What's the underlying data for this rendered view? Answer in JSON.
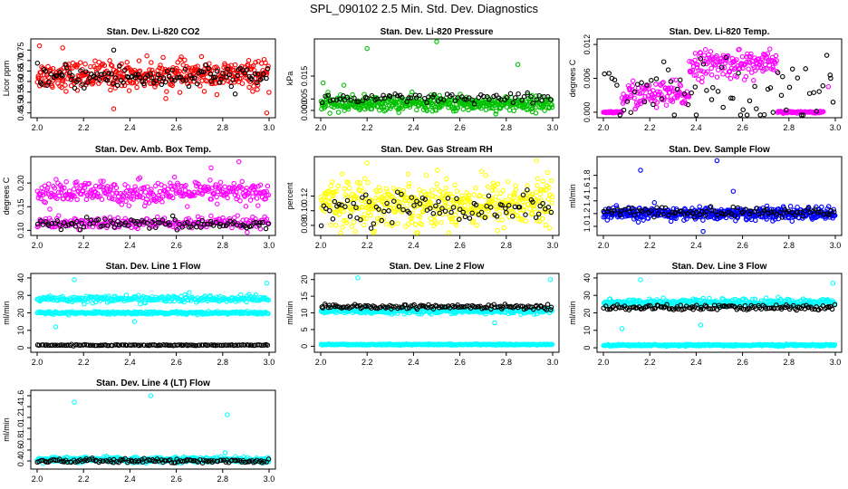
{
  "title": "SPL_090102  2.5 Min. Std. Dev. Diagnostics",
  "chart_data": [
    {
      "type": "scatter",
      "title": "Stan. Dev. Li-820 CO2",
      "ylabel": "Licor ppm",
      "xlim": [
        2.0,
        3.0
      ],
      "ylim": [
        0.44,
        0.79
      ],
      "xticks": [
        "2.0",
        "2.2",
        "2.4",
        "2.6",
        "2.8",
        "3.0"
      ],
      "yticks": [
        "0.45",
        "0.50",
        "0.55",
        "0.60",
        "0.65",
        "0.70",
        "0.75"
      ],
      "series": [
        {
          "name": "band-1",
          "color": "#ff0000",
          "center": 0.63,
          "spread": 0.04,
          "count": 420
        },
        {
          "name": "band-2",
          "color": "#000000",
          "center": 0.62,
          "spread": 0.035,
          "count": 120
        }
      ],
      "outliers": [
        {
          "x": 2.01,
          "y": 0.77,
          "color": "#ff0000"
        },
        {
          "x": 2.11,
          "y": 0.76,
          "color": "#ff0000"
        },
        {
          "x": 2.33,
          "y": 0.75,
          "color": "#000000"
        },
        {
          "x": 2.33,
          "y": 0.47,
          "color": "#ff0000"
        },
        {
          "x": 2.99,
          "y": 0.45,
          "color": "#ff0000"
        }
      ]
    },
    {
      "type": "scatter",
      "title": "Stan. Dev. Li-820 Pressure",
      "ylabel": "kPa",
      "xlim": [
        2.0,
        3.0
      ],
      "ylim": [
        -0.002,
        0.03
      ],
      "xticks": [
        "2.0",
        "2.2",
        "2.4",
        "2.6",
        "2.8",
        "3.0"
      ],
      "yticks": [
        "0.000",
        "0.005",
        "0.015"
      ],
      "series": [
        {
          "name": "band-1",
          "color": "#00c000",
          "center": 0.003,
          "spread": 0.002,
          "count": 450
        },
        {
          "name": "band-2",
          "color": "#000000",
          "center": 0.005,
          "spread": 0.0015,
          "count": 80
        }
      ],
      "outliers": [
        {
          "x": 2.2,
          "y": 0.027,
          "color": "#00c000"
        },
        {
          "x": 2.5,
          "y": 0.03,
          "color": "#00c000"
        },
        {
          "x": 2.85,
          "y": 0.02,
          "color": "#00c000"
        },
        {
          "x": 2.01,
          "y": 0.012,
          "color": "#00c000"
        },
        {
          "x": 2.1,
          "y": 0.011,
          "color": "#00c000"
        }
      ]
    },
    {
      "type": "scatter",
      "title": "Stan. Dev. Li-820 Temp.",
      "ylabel": "degrees C",
      "xlim": [
        2.0,
        3.0
      ],
      "ylim": [
        -0.0005,
        0.0125
      ],
      "xticks": [
        "2.0",
        "2.2",
        "2.4",
        "2.6",
        "2.8",
        "3.0"
      ],
      "yticks": [
        "0.000",
        "0.006",
        "0.012"
      ],
      "series": [
        {
          "name": "low",
          "color": "#ff00ff",
          "x_range": [
            2.0,
            2.08
          ],
          "center": 0.0,
          "spread": 0.0001,
          "count": 30
        },
        {
          "name": "mid",
          "color": "#ff00ff",
          "x_range": [
            2.08,
            2.37
          ],
          "center": 0.003,
          "spread": 0.0015,
          "count": 110
        },
        {
          "name": "high",
          "color": "#ff00ff",
          "x_range": [
            2.37,
            2.75
          ],
          "center": 0.0085,
          "spread": 0.0015,
          "count": 150
        },
        {
          "name": "tail",
          "color": "#ff00ff",
          "x_range": [
            2.75,
            2.95
          ],
          "center": 0.0,
          "spread": 0.0001,
          "count": 60
        },
        {
          "name": "black",
          "color": "#000000",
          "x_range": [
            2.0,
            3.0
          ],
          "center": 0.004,
          "spread": 0.004,
          "count": 70
        }
      ],
      "outliers": [
        {
          "x": 2.97,
          "y": 0.0045,
          "color": "#ff00ff"
        },
        {
          "x": 2.98,
          "y": 0.006,
          "color": "#000000"
        }
      ]
    },
    {
      "type": "scatter",
      "title": "Stan. Dev. Amb. Box Temp.",
      "ylabel": "degrees C",
      "xlim": [
        2.0,
        3.0
      ],
      "ylim": [
        0.095,
        0.25
      ],
      "xticks": [
        "2.0",
        "2.2",
        "2.4",
        "2.6",
        "2.8",
        "3.0"
      ],
      "yticks": [
        "0.10",
        "0.15",
        "0.20"
      ],
      "series": [
        {
          "name": "upper",
          "color": "#ff00ff",
          "center": 0.18,
          "spread": 0.015,
          "count": 320
        },
        {
          "name": "lower",
          "color": "#ff00ff",
          "center": 0.115,
          "spread": 0.008,
          "count": 230
        },
        {
          "name": "black",
          "color": "#000000",
          "center": 0.113,
          "spread": 0.007,
          "count": 100
        }
      ],
      "outliers": [
        {
          "x": 2.87,
          "y": 0.245,
          "color": "#ff00ff"
        },
        {
          "x": 2.75,
          "y": 0.232,
          "color": "#ff00ff"
        }
      ]
    },
    {
      "type": "scatter",
      "title": "Stan. Dev. Gas Stream RH",
      "ylabel": "percent",
      "xlim": [
        2.0,
        3.0
      ],
      "ylim": [
        0.07,
        0.17
      ],
      "xticks": [
        "2.0",
        "2.2",
        "2.4",
        "2.6",
        "2.8",
        "3.0"
      ],
      "yticks": [
        "0.08",
        "0.10",
        "0.12"
      ],
      "series": [
        {
          "name": "yellow",
          "color": "#ffff00",
          "center": 0.11,
          "spread": 0.02,
          "count": 480
        },
        {
          "name": "black",
          "color": "#000000",
          "center": 0.105,
          "spread": 0.012,
          "count": 90
        }
      ],
      "outliers": [
        {
          "x": 2.2,
          "y": 0.165,
          "color": "#ffff00"
        },
        {
          "x": 2.93,
          "y": 0.168,
          "color": "#ffff00"
        }
      ]
    },
    {
      "type": "scatter",
      "title": "Stan. Dev. Sample Flow",
      "ylabel": "ml/min",
      "xlim": [
        2.0,
        3.0
      ],
      "ylim": [
        0.9,
        2.05
      ],
      "xticks": [
        "2.0",
        "2.2",
        "2.4",
        "2.6",
        "2.8",
        "3.0"
      ],
      "yticks": [
        "1.0",
        "1.2",
        "1.4",
        "1.6",
        "1.8"
      ],
      "series": [
        {
          "name": "blue",
          "color": "#0000ff",
          "center": 1.2,
          "spread": 0.06,
          "count": 480
        },
        {
          "name": "black",
          "color": "#000000",
          "center": 1.22,
          "spread": 0.05,
          "count": 90
        }
      ],
      "outliers": [
        {
          "x": 2.16,
          "y": 1.88,
          "color": "#0000ff"
        },
        {
          "x": 2.49,
          "y": 2.03,
          "color": "#0000ff"
        },
        {
          "x": 2.43,
          "y": 0.92,
          "color": "#0000ff"
        },
        {
          "x": 2.56,
          "y": 1.55,
          "color": "#0000ff"
        }
      ]
    },
    {
      "type": "scatter",
      "title": "Stan. Dev. Line 1 Flow",
      "ylabel": "ml/min",
      "xlim": [
        2.0,
        3.0
      ],
      "ylim": [
        -1,
        41
      ],
      "xticks": [
        "2.0",
        "2.2",
        "2.4",
        "2.6",
        "2.8",
        "3.0"
      ],
      "yticks": [
        "0",
        "10",
        "20",
        "30",
        "40"
      ],
      "series": [
        {
          "name": "top",
          "color": "#00ffff",
          "center": 28,
          "spread": 1.2,
          "count": 260
        },
        {
          "name": "mid",
          "color": "#00ffff",
          "center": 20,
          "spread": 0.5,
          "count": 260
        },
        {
          "name": "bottom-black",
          "color": "#000000",
          "center": 1.5,
          "spread": 0.2,
          "count": 130
        }
      ],
      "outliers": [
        {
          "x": 2.16,
          "y": 39,
          "color": "#00ffff"
        },
        {
          "x": 2.99,
          "y": 37,
          "color": "#00ffff"
        },
        {
          "x": 2.08,
          "y": 12,
          "color": "#00ffff"
        },
        {
          "x": 2.42,
          "y": 15,
          "color": "#00ffff"
        }
      ]
    },
    {
      "type": "scatter",
      "title": "Stan. Dev. Line 2 Flow",
      "ylabel": "ml/min",
      "xlim": [
        2.0,
        3.0
      ],
      "ylim": [
        -1,
        21
      ],
      "xticks": [
        "2.0",
        "2.2",
        "2.4",
        "2.6",
        "2.8",
        "3.0"
      ],
      "yticks": [
        "0",
        "5",
        "10",
        "15",
        "20"
      ],
      "series": [
        {
          "name": "cyan-mid",
          "color": "#00ffff",
          "center": 10.5,
          "spread": 0.5,
          "count": 280
        },
        {
          "name": "black",
          "color": "#000000",
          "center": 11.8,
          "spread": 0.4,
          "count": 140
        },
        {
          "name": "cyan-bottom",
          "color": "#00ffff",
          "center": 0.5,
          "spread": 0.1,
          "count": 300
        }
      ],
      "outliers": [
        {
          "x": 2.16,
          "y": 20.5,
          "color": "#00ffff"
        },
        {
          "x": 2.99,
          "y": 20,
          "color": "#00ffff"
        },
        {
          "x": 2.75,
          "y": 7,
          "color": "#00ffff"
        }
      ]
    },
    {
      "type": "scatter",
      "title": "Stan. Dev. Line 3 Flow",
      "ylabel": "ml/min",
      "xlim": [
        2.0,
        3.0
      ],
      "ylim": [
        -1,
        41
      ],
      "xticks": [
        "2.0",
        "2.2",
        "2.4",
        "2.6",
        "2.8",
        "3.0"
      ],
      "yticks": [
        "0",
        "10",
        "20",
        "30",
        "40"
      ],
      "series": [
        {
          "name": "cyan-upper",
          "color": "#00ffff",
          "center": 26,
          "spread": 1.3,
          "count": 300
        },
        {
          "name": "black",
          "color": "#000000",
          "center": 23,
          "spread": 1.0,
          "count": 140
        },
        {
          "name": "cyan-bottom",
          "color": "#00ffff",
          "center": 1.5,
          "spread": 0.3,
          "count": 300
        }
      ],
      "outliers": [
        {
          "x": 2.16,
          "y": 39,
          "color": "#00ffff"
        },
        {
          "x": 2.99,
          "y": 37,
          "color": "#00ffff"
        },
        {
          "x": 2.08,
          "y": 11,
          "color": "#00ffff"
        },
        {
          "x": 2.42,
          "y": 13,
          "color": "#00ffff"
        }
      ]
    },
    {
      "type": "scatter",
      "title": "Stan. Dev. Line 4 (LT) Flow",
      "ylabel": "ml/min",
      "xlim": [
        2.0,
        3.0
      ],
      "ylim": [
        0.3,
        1.65
      ],
      "xticks": [
        "2.0",
        "2.2",
        "2.4",
        "2.6",
        "2.8",
        "3.0"
      ],
      "yticks": [
        "0.4",
        "0.6",
        "0.8",
        "1.0",
        "1.2",
        "1.4",
        "1.6"
      ],
      "series": [
        {
          "name": "cyan",
          "color": "#00ffff",
          "center": 0.42,
          "spread": 0.03,
          "count": 420
        },
        {
          "name": "black",
          "color": "#000000",
          "center": 0.4,
          "spread": 0.025,
          "count": 130
        }
      ],
      "outliers": [
        {
          "x": 2.16,
          "y": 1.48,
          "color": "#00ffff"
        },
        {
          "x": 2.49,
          "y": 1.6,
          "color": "#00ffff"
        },
        {
          "x": 2.82,
          "y": 1.25,
          "color": "#00ffff"
        },
        {
          "x": 2.81,
          "y": 0.55,
          "color": "#00ffff"
        }
      ]
    }
  ]
}
